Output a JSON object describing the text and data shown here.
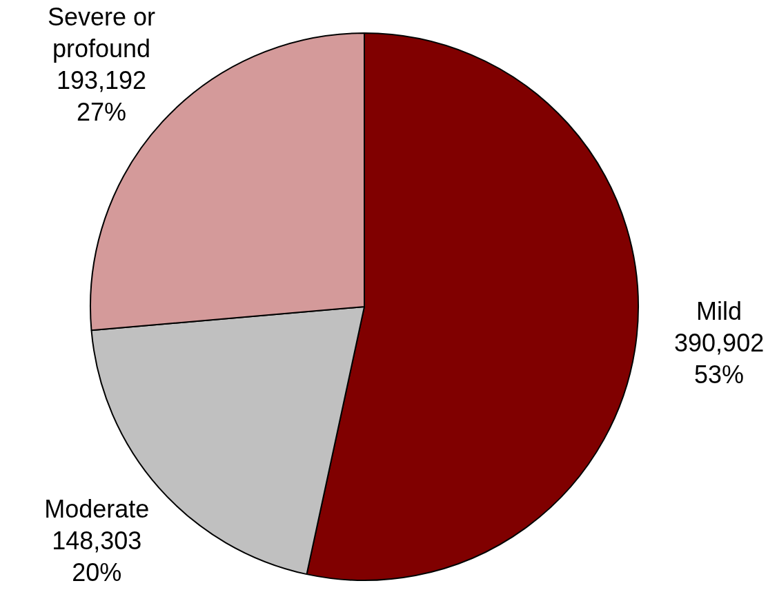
{
  "chart_data": {
    "type": "pie",
    "categories": [
      "Mild",
      "Moderate",
      "Severe or\nprofound"
    ],
    "values": [
      390902,
      148303,
      193192
    ],
    "colors": [
      "#800000",
      "#c0c0c0",
      "#d49a9a"
    ],
    "value_labels": [
      "390,902\n53%",
      "148,303\n20%",
      "193,192\n27%"
    ],
    "legend": false
  }
}
